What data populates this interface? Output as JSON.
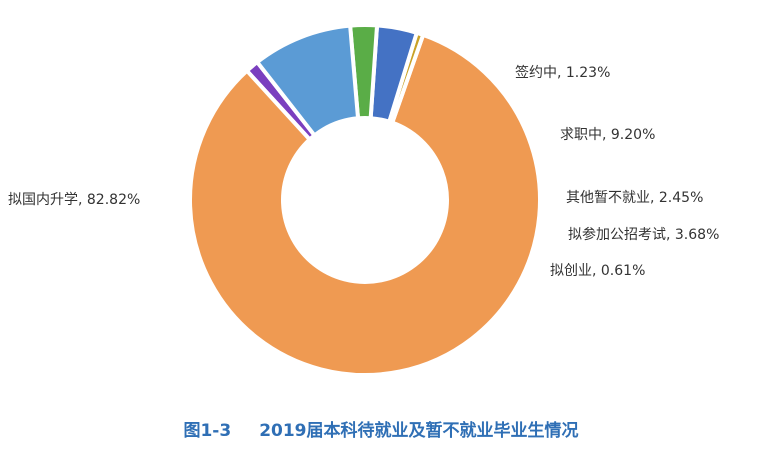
{
  "caption": {
    "figure_number": "图1-3",
    "title": "2019届本科待就业及暂不就业毕业生情况"
  },
  "chart_data": {
    "type": "pie",
    "style": "donut",
    "start": "top",
    "direction": "counterclockwise",
    "slices": [
      {
        "label": "签约中",
        "value": 1.23,
        "display": "签约中, 1.23%",
        "color": "#7b3fbf"
      },
      {
        "label": "拟国内升学",
        "value": 82.82,
        "display": "拟国内升学, 82.82%",
        "color": "#ef9a52"
      },
      {
        "label": "拟创业",
        "value": 0.61,
        "display": "拟创业, 0.61%",
        "color": "#c9a227"
      },
      {
        "label": "拟参加公招考试",
        "value": 3.68,
        "display": "拟参加公招考试, 3.68%",
        "color": "#4472c4"
      },
      {
        "label": "其他暂不就业",
        "value": 2.45,
        "display": "其他暂不就业, 2.45%",
        "color": "#5aad47"
      },
      {
        "label": "求职中",
        "value": 9.2,
        "display": "求职中, 9.20%",
        "color": "#5b9bd5"
      }
    ]
  }
}
